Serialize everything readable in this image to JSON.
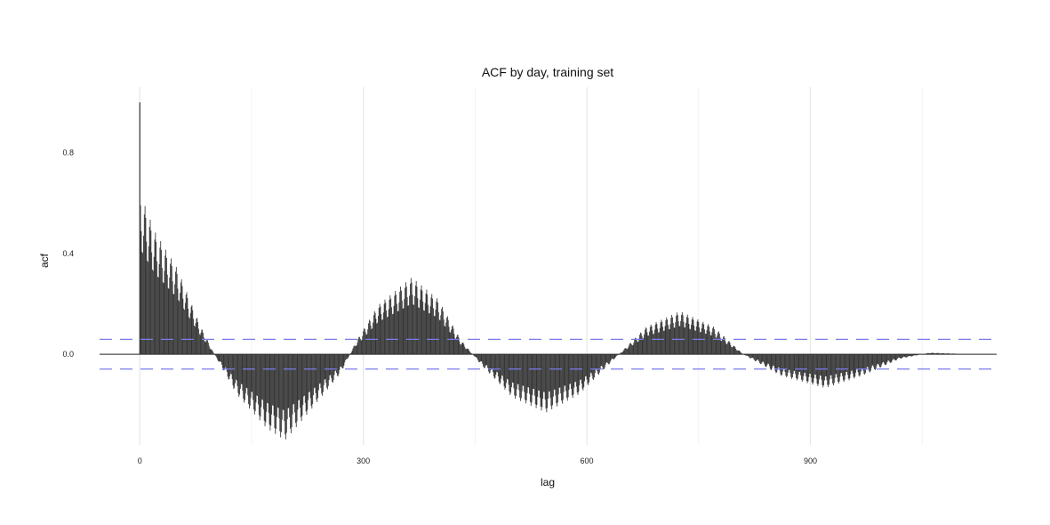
{
  "chart_data": {
    "type": "bar",
    "title": "ACF by day, training set",
    "xlabel": "lag",
    "ylabel": "acf",
    "xlim": [
      -54,
      1150
    ],
    "ylim": [
      -0.36,
      1.06
    ],
    "x_ticks": [
      0,
      300,
      600,
      900
    ],
    "x_tick_labels": [
      "0",
      "300",
      "600",
      "900"
    ],
    "y_ticks": [
      0.0,
      0.4,
      0.8
    ],
    "y_tick_labels": [
      "0.0",
      "0.4",
      "0.8"
    ],
    "grid": true,
    "confidence_bound": 0.059,
    "confidence_color": "#7b7bea",
    "bar_color": "#333333",
    "lag_max": 1095,
    "acf_lag0": 1.0,
    "envelope_points": [
      {
        "lag": 1,
        "acf": 0.52
      },
      {
        "lag": 20,
        "acf": 0.4
      },
      {
        "lag": 50,
        "acf": 0.28
      },
      {
        "lag": 80,
        "acf": 0.1
      },
      {
        "lag": 100,
        "acf": 0.0
      },
      {
        "lag": 130,
        "acf": -0.13
      },
      {
        "lag": 170,
        "acf": -0.24
      },
      {
        "lag": 195,
        "acf": -0.28
      },
      {
        "lag": 230,
        "acf": -0.18
      },
      {
        "lag": 270,
        "acf": -0.06
      },
      {
        "lag": 290,
        "acf": 0.04
      },
      {
        "lag": 320,
        "acf": 0.16
      },
      {
        "lag": 365,
        "acf": 0.25
      },
      {
        "lag": 400,
        "acf": 0.18
      },
      {
        "lag": 430,
        "acf": 0.05
      },
      {
        "lag": 460,
        "acf": -0.04
      },
      {
        "lag": 500,
        "acf": -0.14
      },
      {
        "lag": 545,
        "acf": -0.19
      },
      {
        "lag": 590,
        "acf": -0.13
      },
      {
        "lag": 635,
        "acf": -0.02
      },
      {
        "lag": 680,
        "acf": 0.09
      },
      {
        "lag": 725,
        "acf": 0.14
      },
      {
        "lag": 770,
        "acf": 0.09
      },
      {
        "lag": 810,
        "acf": 0.0
      },
      {
        "lag": 860,
        "acf": -0.07
      },
      {
        "lag": 920,
        "acf": -0.11
      },
      {
        "lag": 970,
        "acf": -0.07
      },
      {
        "lag": 1020,
        "acf": -0.015
      },
      {
        "lag": 1060,
        "acf": 0.005
      },
      {
        "lag": 1095,
        "acf": 0.002
      }
    ],
    "weekly_period": 7
  }
}
